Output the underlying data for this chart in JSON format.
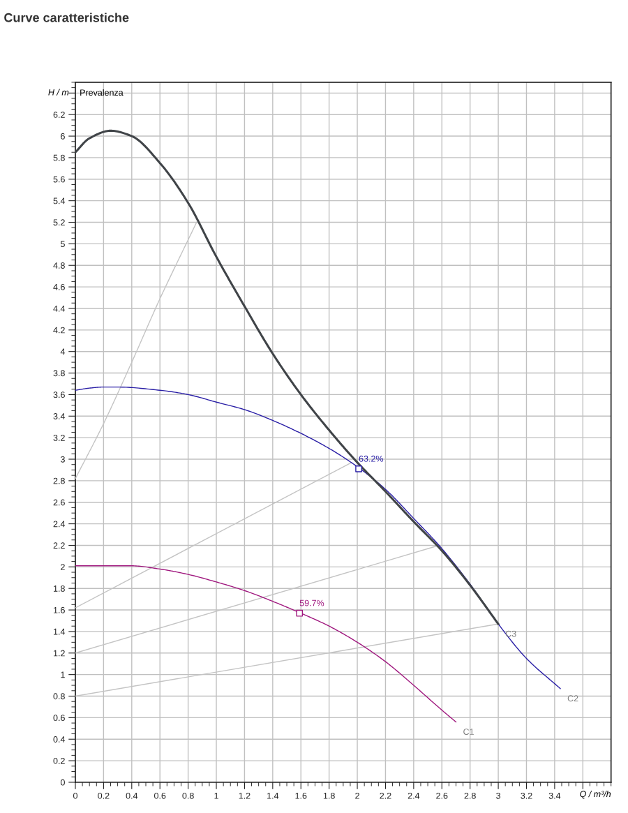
{
  "chart_data": {
    "type": "line",
    "title": "Curve caratteristiche",
    "xlabel": "Q / m³/h",
    "ylabel": "H / m",
    "annotations": [
      "Prevalenza",
      {
        "text": "63.2%",
        "x": 2.01,
        "y": 2.91
      },
      {
        "text": "59.7%",
        "x": 1.59,
        "y": 1.57
      }
    ],
    "xlim": [
      0,
      3.8
    ],
    "ylim": [
      0,
      6.5
    ],
    "xticks": [
      0,
      0.2,
      0.4,
      0.6,
      0.8,
      1,
      1.2,
      1.4,
      1.6,
      1.8,
      2,
      2.2,
      2.4,
      2.6,
      2.8,
      3,
      3.2,
      3.4,
      {
        "value": 3.6,
        "label": null
      }
    ],
    "yticks": [
      0,
      0.2,
      0.4,
      0.6,
      0.8,
      1,
      1.2,
      1.4,
      1.6,
      1.8,
      2,
      2.2,
      2.4,
      2.6,
      2.8,
      3,
      3.2,
      3.4,
      3.6,
      3.8,
      4,
      4.2,
      4.4,
      4.6,
      4.8,
      5,
      5.2,
      5.4,
      5.6,
      5.8,
      6,
      6.2,
      {
        "value": 6.4,
        "label": null
      }
    ],
    "grid": true,
    "marker": "none",
    "line_style": "solid",
    "series": [
      {
        "color": "#c4c4c4",
        "x": [
          0,
          0.2,
          0.4,
          0.6,
          0.86
        ],
        "values": [
          2.82,
          3.33,
          3.9,
          4.49,
          5.2
        ]
      },
      {
        "color": "#c4c4c4",
        "x": [
          0,
          1.96
        ],
        "values": [
          1.62,
          2.97
        ]
      },
      {
        "color": "#c4c4c4",
        "x": [
          0,
          2.58
        ],
        "values": [
          1.2,
          2.2
        ]
      },
      {
        "color": "#c4c4c4",
        "x": [
          0,
          3.0
        ],
        "values": [
          0.8,
          1.47
        ]
      },
      {
        "name": "C1",
        "color": "#a0197f",
        "x": [
          0,
          0.2,
          0.4,
          0.6,
          0.8,
          1.0,
          1.2,
          1.4,
          1.6,
          1.8,
          2.0,
          2.2,
          2.4,
          2.6,
          2.7
        ],
        "values": [
          2.01,
          2.01,
          2.01,
          1.98,
          1.93,
          1.86,
          1.78,
          1.68,
          1.57,
          1.45,
          1.3,
          1.12,
          0.9,
          0.67,
          0.56
        ]
      },
      {
        "name": "C2",
        "color": "#2a1fa6",
        "x": [
          0,
          0.1,
          0.2,
          0.3,
          0.6,
          0.8,
          1.0,
          1.2,
          1.4,
          1.6,
          1.8,
          2.0,
          2.2,
          2.4,
          2.6,
          2.8,
          3.0,
          3.2,
          3.44
        ],
        "values": [
          3.64,
          3.66,
          3.67,
          3.67,
          3.64,
          3.6,
          3.53,
          3.46,
          3.36,
          3.24,
          3.1,
          2.93,
          2.72,
          2.45,
          2.17,
          1.84,
          1.47,
          1.15,
          0.87
        ]
      },
      {
        "name": "C3",
        "color": "#404448",
        "x": [
          0,
          0.1,
          0.25,
          0.4,
          0.6,
          0.8,
          1.0,
          1.2,
          1.4,
          1.6,
          1.8,
          2.0,
          2.2,
          2.4,
          2.6,
          2.8,
          3.0
        ],
        "values": [
          5.85,
          5.98,
          6.05,
          6.0,
          5.75,
          5.38,
          4.88,
          4.42,
          3.98,
          3.6,
          3.27,
          2.97,
          2.7,
          2.42,
          2.15,
          1.83,
          1.47
        ]
      },
      {
        "type": "scatter",
        "marker": "square",
        "color": "#2a1fa6",
        "x": [
          2.01
        ],
        "values": [
          2.91
        ]
      },
      {
        "type": "scatter",
        "marker": "square",
        "color": "#a0197f",
        "x": [
          1.59
        ],
        "values": [
          1.57
        ]
      }
    ]
  }
}
